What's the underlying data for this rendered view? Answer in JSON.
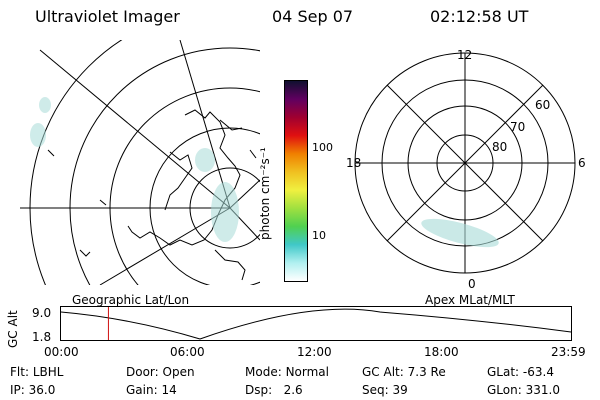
{
  "header": {
    "title": "Ultraviolet Imager",
    "date": "04 Sep 07",
    "time": "02:12:58 UT"
  },
  "geo_panel": {
    "label": "Geographic Lat/Lon"
  },
  "apex_panel": {
    "label": "Apex  MLat/MLT",
    "mlt_labels": {
      "top": "12",
      "left": "18",
      "right": "6",
      "bottom": "0"
    },
    "lat_labels": [
      "80",
      "70",
      "60"
    ]
  },
  "colorbar": {
    "unit_label": "photon cm⁻²s⁻¹",
    "tick_labels": [
      "100",
      "10"
    ],
    "colors": [
      "#ffffff",
      "#b0f0f0",
      "#40c8c8",
      "#50d050",
      "#a0e040",
      "#f0f040",
      "#f0c020",
      "#f08000",
      "#e01010",
      "#a00030",
      "#600060",
      "#101030"
    ]
  },
  "altitude_plot": {
    "axis_label": "GC Alt",
    "y_ticks": [
      "9.0",
      "1.8"
    ],
    "x_ticks": [
      "00:00",
      "06:00",
      "12:00",
      "18:00",
      "23:59"
    ],
    "current_time_fraction": 0.093,
    "marker_color": "#d01010"
  },
  "status": {
    "flt_label": "Flt:",
    "flt_value": "LBHL",
    "ip_label": "IP:",
    "ip_value": "36.0",
    "door_label": "Door:",
    "door_value": "Open",
    "gain_label": "Gain:",
    "gain_value": "14",
    "mode_label": "Mode:",
    "mode_value": "Normal",
    "dsp_label": "Dsp:",
    "dsp_value": "2.6",
    "gcalt_label": "GC Alt:",
    "gcalt_value": "7.3 Re",
    "seq_label": "Seq:",
    "seq_value": "39",
    "glat_label": "GLat:",
    "glat_value": "-63.4",
    "glon_label": "GLon:",
    "glon_value": "331.0"
  }
}
